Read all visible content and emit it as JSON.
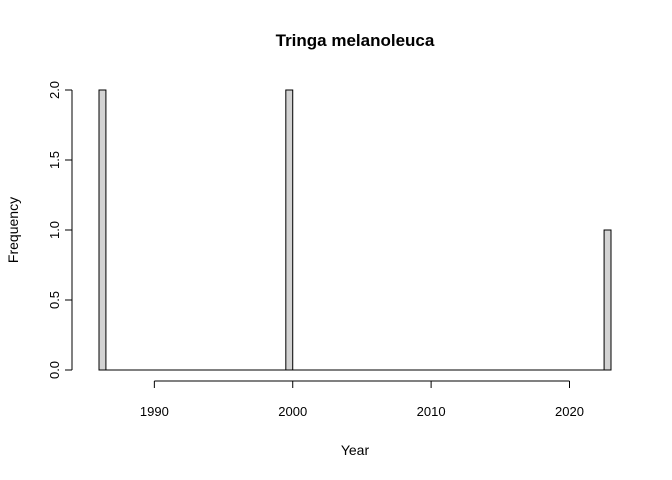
{
  "chart_data": {
    "type": "bar",
    "title": "Tringa melanoleuca",
    "xlabel": "Year",
    "ylabel": "Frequency",
    "bin_width": 0.5,
    "x": [
      1986,
      1999.5,
      2022.5
    ],
    "values": [
      2,
      2,
      1
    ],
    "xlim": [
      1986,
      2023
    ],
    "ylim": [
      0,
      2
    ],
    "x_ticks": [
      1990,
      2000,
      2010,
      2020
    ],
    "y_ticks": [
      "0.0",
      "0.5",
      "1.0",
      "1.5",
      "2.0"
    ],
    "bar_color": "#d3d3d3",
    "grid": false,
    "legend": "none"
  }
}
